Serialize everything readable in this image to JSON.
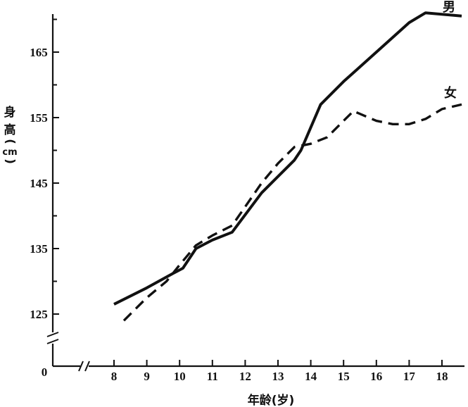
{
  "chart_data": {
    "type": "line",
    "title": "",
    "xlabel": "年龄(岁)",
    "ylabel_lines": [
      "身",
      "高",
      "(",
      "cm",
      ")"
    ],
    "x_ticks": [
      8,
      9,
      10,
      11,
      12,
      13,
      14,
      15,
      16,
      17,
      18
    ],
    "y_ticks": [
      125,
      135,
      145,
      155,
      165
    ],
    "origin_label": "0",
    "xlim": [
      7.4,
      18.6
    ],
    "ylim": [
      123,
      171
    ],
    "axis_breaks": [
      "x",
      "y"
    ],
    "grid": false,
    "legend": "inline labels at line ends",
    "series": [
      {
        "name": "男",
        "style": "solid",
        "x": [
          8.0,
          9.0,
          9.8,
          10.1,
          10.5,
          11.0,
          11.6,
          12.5,
          13.5,
          13.7,
          14.0,
          14.3,
          15.0,
          16.0,
          17.0,
          17.5,
          18.6
        ],
        "y": [
          126.5,
          129.0,
          131.2,
          132.0,
          135.0,
          136.3,
          137.5,
          143.5,
          148.5,
          150.0,
          153.5,
          157.0,
          160.5,
          165.0,
          169.5,
          171.0,
          170.5
        ]
      },
      {
        "name": "女",
        "style": "dashed",
        "x": [
          8.3,
          9.0,
          9.6,
          10.0,
          10.5,
          11.0,
          11.6,
          12.5,
          13.0,
          13.5,
          14.0,
          14.5,
          15.0,
          15.3,
          16.0,
          16.5,
          17.0,
          17.5,
          18.0,
          18.6
        ],
        "y": [
          124.0,
          127.5,
          130.0,
          132.5,
          135.5,
          137.0,
          138.5,
          145.0,
          148.0,
          150.5,
          151.0,
          152.0,
          154.5,
          156.0,
          154.5,
          154.0,
          154.0,
          154.8,
          156.3,
          157.0
        ]
      }
    ]
  }
}
